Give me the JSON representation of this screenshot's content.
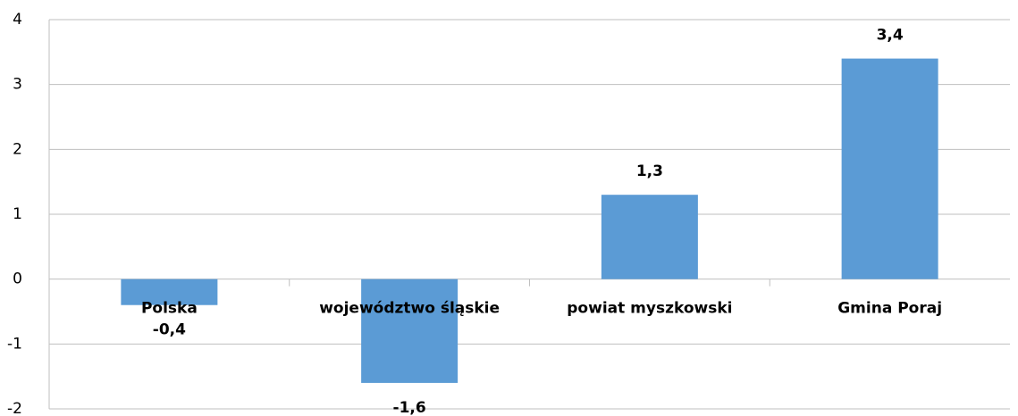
{
  "chart_data": {
    "type": "bar",
    "categories": [
      "Polska",
      "województwo śląskie",
      "powiat myszkowski",
      "Gmina Poraj"
    ],
    "values": [
      -0.4,
      -1.6,
      1.3,
      3.4
    ],
    "value_labels": [
      "-0,4",
      "-1,6",
      "1,3",
      "3,4"
    ],
    "color": "#5b9bd5",
    "ylim": [
      -2,
      4
    ],
    "yticks": [
      -2,
      -1,
      0,
      1,
      2,
      3,
      4
    ],
    "grid": true
  }
}
